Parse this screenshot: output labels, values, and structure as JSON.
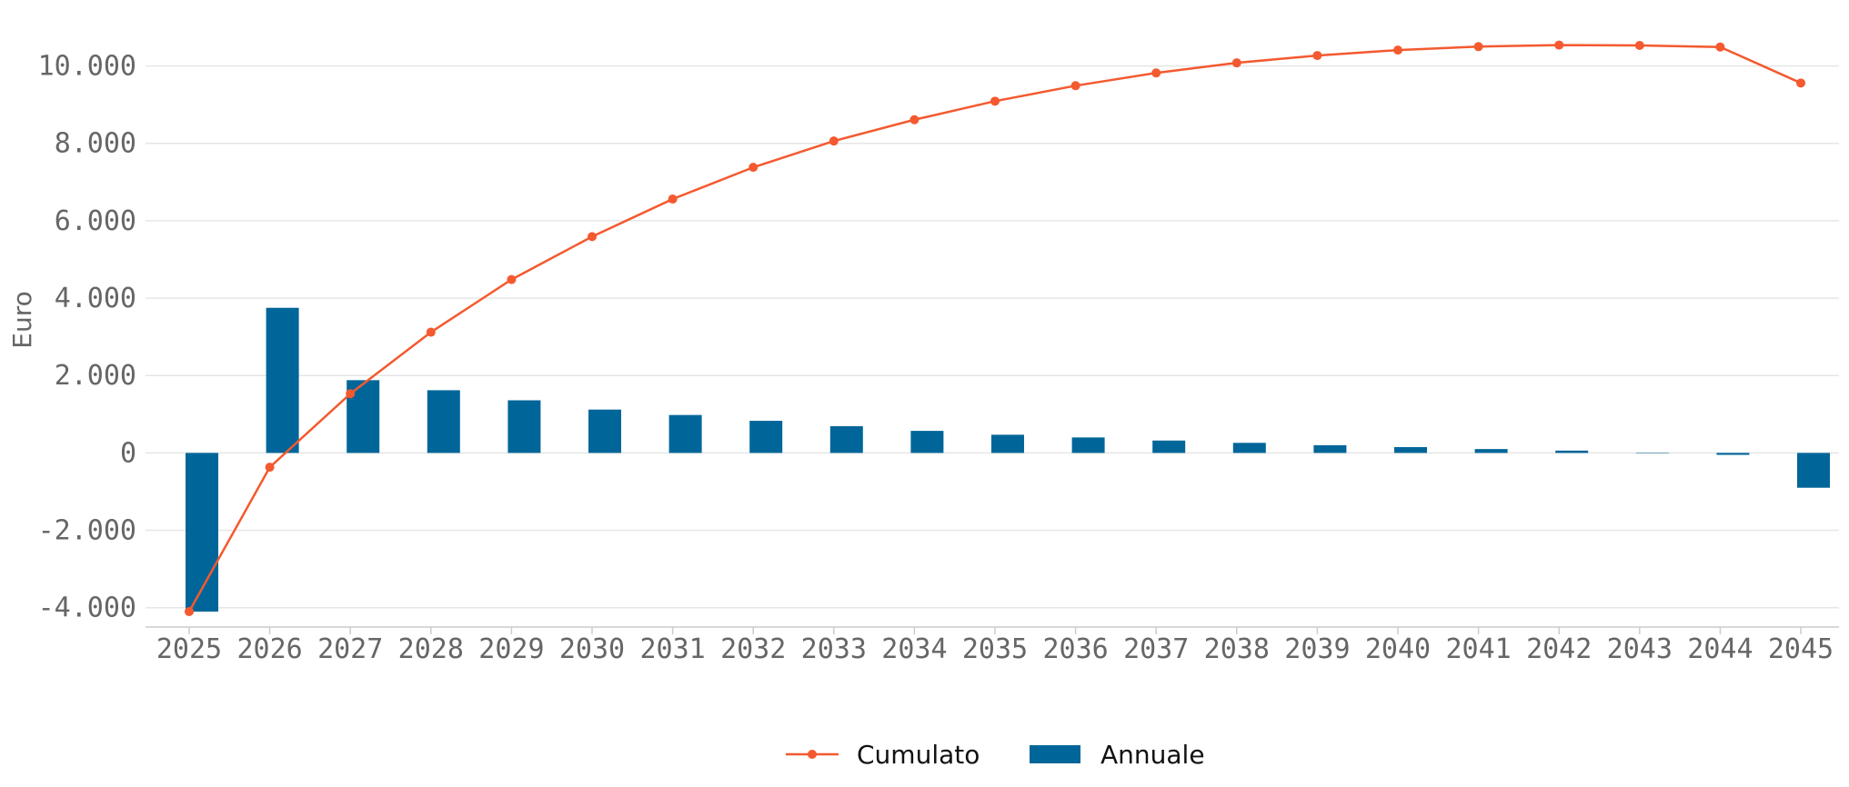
{
  "chart_data": {
    "type": "bar+line",
    "title": "",
    "xlabel": "",
    "ylabel": "Euro",
    "ylim": [
      -4500,
      11000
    ],
    "yticks": [
      -4000,
      -2000,
      0,
      2000,
      4000,
      6000,
      8000,
      10000
    ],
    "ytick_labels": [
      "-4.000",
      "-2.000",
      "0",
      "2.000",
      "4.000",
      "6.000",
      "8.000",
      "10.000"
    ],
    "grid": true,
    "legend_position": "bottom-center",
    "categories": [
      "2025",
      "2026",
      "2027",
      "2028",
      "2029",
      "2030",
      "2031",
      "2032",
      "2033",
      "2034",
      "2035",
      "2036",
      "2037",
      "2038",
      "2039",
      "2040",
      "2041",
      "2042",
      "2043",
      "2044",
      "2045"
    ],
    "series": [
      {
        "name": "Annuale",
        "kind": "bar",
        "color": "#006699",
        "values": [
          -4100,
          3750,
          1880,
          1620,
          1360,
          1120,
          980,
          830,
          690,
          570,
          470,
          400,
          320,
          260,
          200,
          150,
          100,
          60,
          0,
          -50,
          -900
        ]
      },
      {
        "name": "Cumulato",
        "kind": "line",
        "color": "#f4592f",
        "values": [
          -4100,
          -370,
          1530,
          3120,
          4480,
          5590,
          6560,
          7380,
          8060,
          8610,
          9090,
          9490,
          9820,
          10080,
          10270,
          10410,
          10500,
          10540,
          10530,
          10490,
          9560
        ]
      }
    ]
  }
}
